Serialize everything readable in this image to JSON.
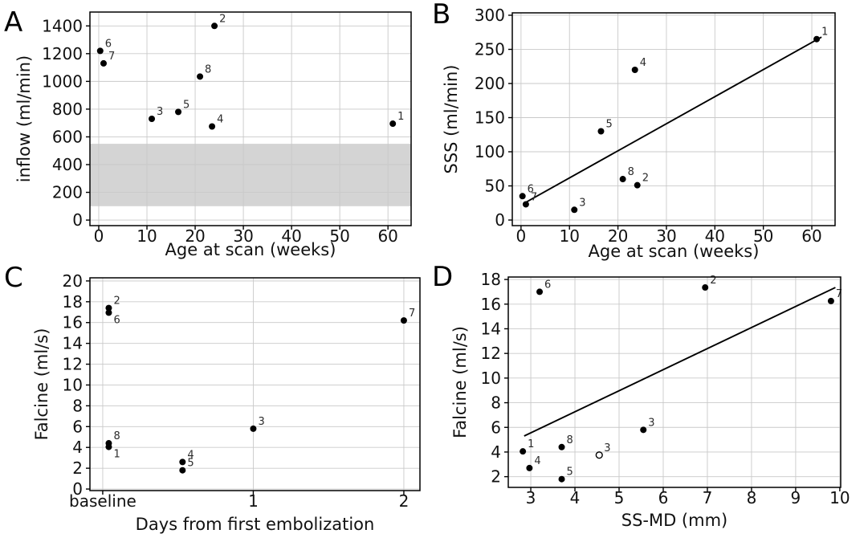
{
  "style": {
    "background": "#ffffff",
    "marker_color": "#000000",
    "open_marker_fill": "#ffffff",
    "regression_line_color": "#000000",
    "grid_color": "#c9c9c9",
    "band_color": "#d4d4d4",
    "spine_color": "#000000",
    "tick_text_color": "#111111",
    "annotation_color": "#2b2b2b"
  },
  "chart_data": [
    {
      "panel_label": "A",
      "type": "scatter",
      "title": "",
      "xlabel": "Age at scan (weeks)",
      "ylabel": "inflow (ml/min)",
      "xlim": [
        -1.83,
        64.8
      ],
      "ylim": [
        -40,
        1500
      ],
      "xticks": [
        0,
        10,
        20,
        30,
        40,
        50,
        60
      ],
      "xtick_labels": [
        "0",
        "10",
        "20",
        "30",
        "40",
        "50",
        "60"
      ],
      "yticks": [
        0,
        200,
        400,
        600,
        800,
        1000,
        1200,
        1400
      ],
      "ytick_labels": [
        "0",
        "200",
        "400",
        "600",
        "800",
        "1000",
        "1200",
        "1400"
      ],
      "grid": true,
      "band": {
        "from": 100,
        "to": 550
      },
      "line": null,
      "points": [
        {
          "label": "6",
          "x": 0.3,
          "y": 1220,
          "marker": "filled",
          "label_pos": "above"
        },
        {
          "label": "7",
          "x": 1.0,
          "y": 1130,
          "marker": "filled",
          "label_pos": "above"
        },
        {
          "label": "2",
          "x": 24.0,
          "y": 1400,
          "marker": "filled",
          "label_pos": "above"
        },
        {
          "label": "8",
          "x": 21.0,
          "y": 1035,
          "marker": "filled",
          "label_pos": "above"
        },
        {
          "label": "5",
          "x": 16.5,
          "y": 780,
          "marker": "filled",
          "label_pos": "above"
        },
        {
          "label": "3",
          "x": 11.0,
          "y": 730,
          "marker": "filled",
          "label_pos": "above"
        },
        {
          "label": "4",
          "x": 23.5,
          "y": 675,
          "marker": "filled",
          "label_pos": "above"
        },
        {
          "label": "1",
          "x": 61.0,
          "y": 695,
          "marker": "filled",
          "label_pos": "above"
        }
      ]
    },
    {
      "panel_label": "B",
      "type": "scatter",
      "title": "",
      "xlabel": "Age at scan (weeks)",
      "ylabel": "SSS (ml/min)",
      "xlim": [
        -1.8,
        64.8
      ],
      "ylim": [
        -8.2,
        303.5
      ],
      "xticks": [
        0,
        10,
        20,
        30,
        40,
        50,
        60
      ],
      "xtick_labels": [
        "0",
        "10",
        "20",
        "30",
        "40",
        "50",
        "60"
      ],
      "yticks": [
        0,
        50,
        100,
        150,
        200,
        250,
        300
      ],
      "ytick_labels": [
        "0",
        "50",
        "100",
        "150",
        "200",
        "250",
        "300"
      ],
      "grid": true,
      "band": null,
      "line": {
        "x1": 1.0,
        "y1": 26,
        "x2": 62.0,
        "y2": 268
      },
      "points": [
        {
          "label": "6",
          "x": 0.3,
          "y": 35,
          "marker": "filled",
          "label_pos": "above"
        },
        {
          "label": "7",
          "x": 1.0,
          "y": 23,
          "marker": "filled",
          "label_pos": "above"
        },
        {
          "label": "3",
          "x": 11.0,
          "y": 15,
          "marker": "filled",
          "label_pos": "above"
        },
        {
          "label": "5",
          "x": 16.5,
          "y": 130,
          "marker": "filled",
          "label_pos": "above"
        },
        {
          "label": "8",
          "x": 21.0,
          "y": 60,
          "marker": "filled",
          "label_pos": "above"
        },
        {
          "label": "2",
          "x": 24.0,
          "y": 51,
          "marker": "filled",
          "label_pos": "above"
        },
        {
          "label": "4",
          "x": 23.5,
          "y": 220,
          "marker": "filled",
          "label_pos": "above"
        },
        {
          "label": "1",
          "x": 61.0,
          "y": 265,
          "marker": "filled",
          "label_pos": "above"
        }
      ]
    },
    {
      "panel_label": "C",
      "type": "scatter",
      "title": "",
      "xlabel": "Days from first embolization",
      "ylabel": "Falcine (ml/s)",
      "xlim": [
        -0.085,
        2.107
      ],
      "ylim": [
        -0.15,
        20.3
      ],
      "xticks": [
        0,
        1,
        2
      ],
      "xtick_labels": [
        "baseline",
        "1",
        "2"
      ],
      "yticks": [
        0,
        2,
        4,
        6,
        8,
        10,
        12,
        14,
        16,
        18,
        20
      ],
      "ytick_labels": [
        "0",
        "2",
        "4",
        "6",
        "8",
        "10",
        "12",
        "14",
        "16",
        "18",
        "20"
      ],
      "grid": true,
      "band": null,
      "line": null,
      "points": [
        {
          "label": "2",
          "x": 0.04,
          "y": 17.4,
          "marker": "filled",
          "label_pos": "above"
        },
        {
          "label": "6",
          "x": 0.04,
          "y": 16.95,
          "marker": "filled",
          "label_pos": "below"
        },
        {
          "label": "8",
          "x": 0.04,
          "y": 4.4,
          "marker": "filled",
          "label_pos": "above"
        },
        {
          "label": "1",
          "x": 0.04,
          "y": 4.05,
          "marker": "filled",
          "label_pos": "below"
        },
        {
          "label": "4",
          "x": 0.53,
          "y": 2.6,
          "marker": "filled",
          "label_pos": "above"
        },
        {
          "label": "5",
          "x": 0.53,
          "y": 1.8,
          "marker": "filled",
          "label_pos": "above"
        },
        {
          "label": "3",
          "x": 1.0,
          "y": 5.8,
          "marker": "filled",
          "label_pos": "above"
        },
        {
          "label": "7",
          "x": 2.0,
          "y": 16.2,
          "marker": "filled",
          "label_pos": "above"
        }
      ]
    },
    {
      "panel_label": "D",
      "type": "scatter",
      "title": "",
      "xlabel": "SS-MD (mm)",
      "ylabel": "Falcine (ml/s)",
      "xlim": [
        2.49,
        10.02
      ],
      "ylim": [
        1.13,
        18.2
      ],
      "xticks": [
        3,
        4,
        5,
        6,
        7,
        8,
        9,
        10
      ],
      "xtick_labels": [
        "3",
        "4",
        "5",
        "6",
        "7",
        "8",
        "9",
        "10"
      ],
      "yticks": [
        2,
        4,
        6,
        8,
        10,
        12,
        14,
        16,
        18
      ],
      "ytick_labels": [
        "2",
        "4",
        "6",
        "8",
        "10",
        "12",
        "14",
        "16",
        "18"
      ],
      "grid": true,
      "band": null,
      "line": {
        "x1": 2.85,
        "y1": 5.3,
        "x2": 9.9,
        "y2": 17.35
      },
      "points": [
        {
          "label": "6",
          "x": 3.2,
          "y": 17.0,
          "marker": "filled",
          "label_pos": "above"
        },
        {
          "label": "2",
          "x": 6.95,
          "y": 17.35,
          "marker": "filled",
          "label_pos": "above"
        },
        {
          "label": "7",
          "x": 9.8,
          "y": 16.25,
          "marker": "filled",
          "label_pos": "above"
        },
        {
          "label": "3",
          "x": 5.55,
          "y": 5.8,
          "marker": "filled",
          "label_pos": "above"
        },
        {
          "label": "1",
          "x": 2.82,
          "y": 4.05,
          "marker": "filled",
          "label_pos": "above"
        },
        {
          "label": "8",
          "x": 3.7,
          "y": 4.4,
          "marker": "filled",
          "label_pos": "above"
        },
        {
          "label": "4",
          "x": 2.97,
          "y": 2.7,
          "marker": "filled",
          "label_pos": "above"
        },
        {
          "label": "5",
          "x": 3.7,
          "y": 1.8,
          "marker": "filled",
          "label_pos": "above"
        },
        {
          "label": "3",
          "x": 4.55,
          "y": 3.75,
          "marker": "open",
          "label_pos": "above"
        }
      ]
    }
  ]
}
